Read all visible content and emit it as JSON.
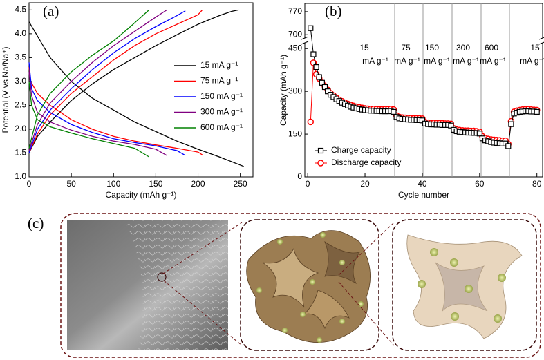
{
  "chart_data": [
    {
      "type": "line",
      "panel_label": "(a)",
      "xlabel": "Capacity (mAh g⁻¹)",
      "ylabel": "Potential (V vs Na/Na⁺)",
      "xlim": [
        0,
        265
      ],
      "ylim": [
        1.0,
        4.65
      ],
      "xticks": [
        0,
        50,
        100,
        150,
        200,
        250
      ],
      "yticks": [
        {
          "value": 1,
          "label": "1.0"
        },
        1.5,
        {
          "value": 2,
          "label": "2.0"
        },
        2.5,
        {
          "value": 3,
          "label": "3.0"
        },
        3.5,
        {
          "value": 4,
          "label": "4.0"
        },
        4.5
      ],
      "legend_loc": "center right",
      "series": [
        {
          "name": "15 mA g⁻¹",
          "color": "#000000",
          "x": [
            0,
            25,
            50,
            75,
            100,
            125,
            150,
            175,
            200,
            225,
            254,
            null,
            0,
            10,
            25,
            50,
            75,
            100,
            125,
            150,
            175,
            200,
            225,
            240,
            248
          ],
          "values": [
            4.25,
            3.5,
            3.0,
            2.65,
            2.4,
            2.15,
            1.95,
            1.75,
            1.58,
            1.42,
            1.22,
            null,
            1.5,
            1.85,
            2.15,
            2.6,
            2.95,
            3.25,
            3.5,
            3.75,
            3.98,
            4.2,
            4.38,
            4.47,
            4.5
          ]
        },
        {
          "name": "75 mA g⁻¹",
          "color": "#ff0000",
          "x": [
            0,
            2,
            10,
            25,
            50,
            75,
            100,
            125,
            150,
            175,
            200,
            206,
            null,
            0,
            10,
            25,
            50,
            75,
            100,
            125,
            150,
            175,
            200,
            205
          ],
          "values": [
            3.3,
            3.0,
            2.75,
            2.5,
            2.2,
            2.0,
            1.85,
            1.75,
            1.67,
            1.6,
            1.52,
            1.45,
            null,
            1.5,
            1.9,
            2.3,
            2.75,
            3.1,
            3.45,
            3.75,
            4.0,
            4.2,
            4.4,
            4.5
          ]
        },
        {
          "name": "150 mA g⁻¹",
          "color": "#0000ff",
          "x": [
            0,
            3,
            10,
            25,
            50,
            75,
            100,
            125,
            150,
            175,
            185,
            null,
            0,
            10,
            25,
            50,
            75,
            100,
            125,
            150,
            175,
            185
          ],
          "values": [
            3.4,
            2.85,
            2.6,
            2.35,
            2.1,
            1.93,
            1.8,
            1.72,
            1.65,
            1.55,
            1.45,
            null,
            1.5,
            2.0,
            2.4,
            2.85,
            3.25,
            3.6,
            3.9,
            4.15,
            4.38,
            4.48
          ]
        },
        {
          "name": "300 mA g⁻¹",
          "color": "#800080",
          "x": [
            0,
            3,
            10,
            25,
            50,
            75,
            100,
            125,
            150,
            163,
            null,
            0,
            10,
            25,
            50,
            75,
            100,
            125,
            150,
            163
          ],
          "values": [
            3.2,
            2.7,
            2.35,
            2.15,
            1.98,
            1.85,
            1.75,
            1.68,
            1.58,
            1.45,
            null,
            1.55,
            2.1,
            2.55,
            3.0,
            3.4,
            3.75,
            4.05,
            4.35,
            4.5
          ]
        },
        {
          "name": "600 mA g⁻¹",
          "color": "#008000",
          "x": [
            0,
            3,
            10,
            25,
            50,
            75,
            100,
            125,
            142,
            null,
            0,
            10,
            25,
            50,
            75,
            100,
            120,
            142
          ],
          "values": [
            3.0,
            2.5,
            2.2,
            2.05,
            1.92,
            1.8,
            1.7,
            1.6,
            1.42,
            null,
            1.6,
            2.3,
            2.75,
            3.2,
            3.55,
            3.85,
            4.15,
            4.5
          ]
        }
      ]
    },
    {
      "type": "scatter",
      "panel_label": "(b)",
      "xlabel": "Cycle number",
      "ylabel": "Capacity (mAh g⁻¹)",
      "xlim": [
        -1,
        82
      ],
      "ylim": [
        0,
        795
      ],
      "axis_break": [
        470,
        690
      ],
      "xticks": [
        0,
        20,
        40,
        60,
        80
      ],
      "yticks": [
        0,
        150,
        300,
        450,
        700,
        770
      ],
      "legend_loc": "lower left",
      "rate_labels": [
        {
          "rate": "15",
          "unit": "mA g⁻¹"
        },
        {
          "rate": "75",
          "unit": "mA g⁻¹"
        },
        {
          "rate": "150",
          "unit": "mA g⁻¹"
        },
        {
          "rate": "300",
          "unit": "mA g⁻¹"
        },
        {
          "rate": "600",
          "unit": "mA g⁻¹"
        },
        {
          "rate": "15",
          "unit": "mA g⁻¹"
        }
      ],
      "x": [
        1,
        2,
        3,
        4,
        5,
        6,
        7,
        8,
        9,
        10,
        11,
        12,
        13,
        14,
        15,
        16,
        17,
        18,
        19,
        20,
        21,
        22,
        23,
        24,
        25,
        26,
        27,
        28,
        29,
        30,
        31,
        32,
        33,
        34,
        35,
        36,
        37,
        38,
        39,
        40,
        41,
        42,
        43,
        44,
        45,
        46,
        47,
        48,
        49,
        50,
        51,
        52,
        53,
        54,
        55,
        56,
        57,
        58,
        59,
        60,
        61,
        62,
        63,
        64,
        65,
        66,
        67,
        68,
        69,
        70,
        71,
        72,
        73,
        74,
        75,
        76,
        77,
        78,
        79,
        80
      ],
      "series": [
        {
          "name": "Charge capacity",
          "color": "#000000",
          "marker": "square",
          "values": [
            720,
            430,
            385,
            350,
            330,
            315,
            300,
            288,
            280,
            272,
            266,
            260,
            255,
            250,
            246,
            243,
            240,
            238,
            236,
            234,
            233,
            232,
            232,
            231,
            231,
            230,
            230,
            230,
            231,
            228,
            210,
            205,
            203,
            202,
            201,
            200,
            200,
            199,
            199,
            198,
            187,
            185,
            184,
            184,
            183,
            183,
            182,
            182,
            182,
            180,
            165,
            160,
            158,
            157,
            156,
            155,
            155,
            154,
            154,
            152,
            135,
            128,
            125,
            122,
            120,
            119,
            118,
            117,
            117,
            108,
            185,
            222,
            225,
            228,
            229,
            230,
            230,
            229,
            229,
            228
          ]
        },
        {
          "name": "Discharge capacity",
          "color": "#ff0000",
          "marker": "circle",
          "values": [
            193,
            400,
            360,
            345,
            330,
            318,
            305,
            293,
            285,
            277,
            270,
            265,
            260,
            256,
            252,
            249,
            246,
            244,
            242,
            240,
            239,
            238,
            238,
            237,
            237,
            237,
            237,
            237,
            238,
            236,
            215,
            210,
            208,
            207,
            206,
            206,
            205,
            205,
            205,
            204,
            192,
            190,
            189,
            189,
            188,
            188,
            188,
            187,
            187,
            186,
            170,
            166,
            164,
            163,
            162,
            162,
            161,
            161,
            160,
            158,
            142,
            136,
            133,
            131,
            130,
            129,
            128,
            127,
            127,
            115,
            195,
            228,
            232,
            234,
            236,
            237,
            237,
            236,
            235,
            234
          ]
        }
      ]
    }
  ],
  "panel_c": {
    "label": "(c)"
  }
}
